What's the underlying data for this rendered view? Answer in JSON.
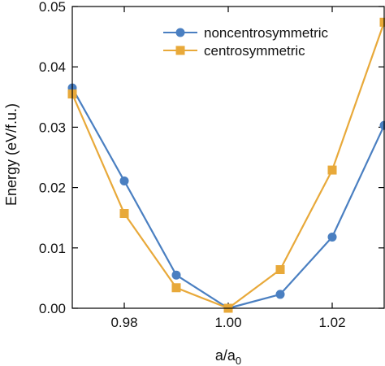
{
  "chart_data": {
    "type": "line",
    "xlabel": "a/a",
    "xlabel_sub": "0",
    "ylabel": "Energy (eV/f.u.)",
    "xlim": [
      0.97,
      1.03
    ],
    "ylim": [
      0.0,
      0.05
    ],
    "xticks": [
      0.98,
      1.0,
      1.02
    ],
    "xtick_labels": [
      "0.98",
      "1.00",
      "1.02"
    ],
    "yticks": [
      0.0,
      0.01,
      0.02,
      0.03,
      0.04,
      0.05
    ],
    "ytick_labels": [
      "0.00",
      "0.01",
      "0.02",
      "0.03",
      "0.04",
      "0.05"
    ],
    "grid": false,
    "legend_position": "top-right",
    "series": [
      {
        "name": "noncentrosymmetric",
        "color": "#4a7fc1",
        "marker": "circle",
        "x": [
          0.97,
          0.98,
          0.99,
          1.0,
          1.01,
          1.02,
          1.03
        ],
        "y": [
          0.0365,
          0.0211,
          0.0055,
          0.0,
          0.0023,
          0.0118,
          0.0303
        ]
      },
      {
        "name": "centrosymmetric",
        "color": "#e8a93a",
        "marker": "square",
        "x": [
          0.97,
          0.98,
          0.99,
          1.0,
          1.01,
          1.02,
          1.03
        ],
        "y": [
          0.0355,
          0.0157,
          0.0034,
          0.0,
          0.0064,
          0.0229,
          0.0474
        ]
      }
    ]
  }
}
